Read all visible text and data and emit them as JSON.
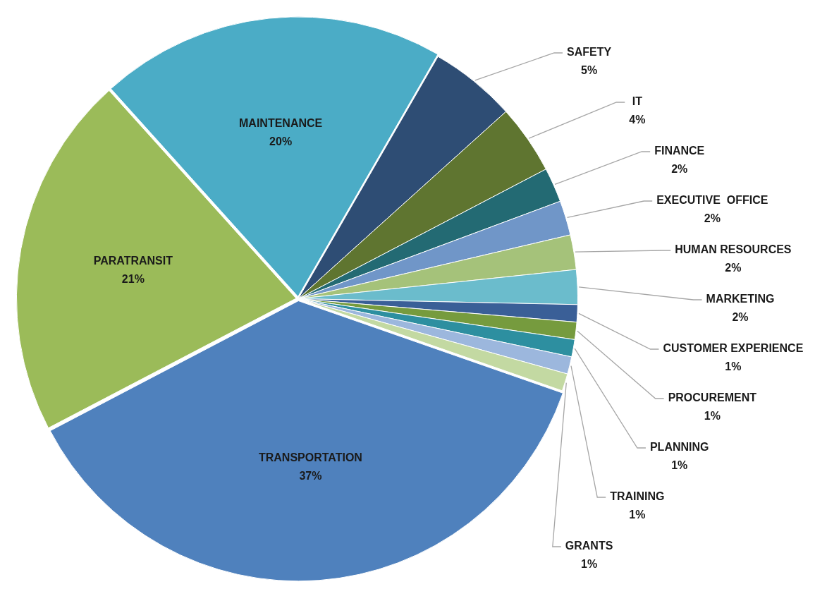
{
  "chart_data": {
    "type": "pie",
    "categories": [
      "SAFETY",
      "IT",
      "FINANCE",
      "EXECUTIVE  OFFICE",
      "HUMAN RESOURCES",
      "MARKETING",
      "CUSTOMER EXPERIENCE",
      "PROCUREMENT",
      "PLANNING",
      "TRAINING",
      "GRANTS",
      "TRANSPORTATION",
      "PARATRANSIT",
      "MAINTENANCE"
    ],
    "values": [
      5,
      4,
      2,
      2,
      2,
      2,
      1,
      1,
      1,
      1,
      1,
      37,
      21,
      20
    ],
    "colors": [
      "#2e4d74",
      "#5f7530",
      "#236a73",
      "#7096c8",
      "#a5c27a",
      "#6bbccc",
      "#3a5f97",
      "#769b3e",
      "#2d8fa0",
      "#9cb7dd",
      "#c3d9a2",
      "#4f81bd",
      "#9bbb59",
      "#4bacc6"
    ],
    "value_labels": [
      "5%",
      "4%",
      "2%",
      "2%",
      "2%",
      "2%",
      "1%",
      "1%",
      "1%",
      "1%",
      "1%",
      "37%",
      "21%",
      "20%"
    ],
    "legend": false
  }
}
